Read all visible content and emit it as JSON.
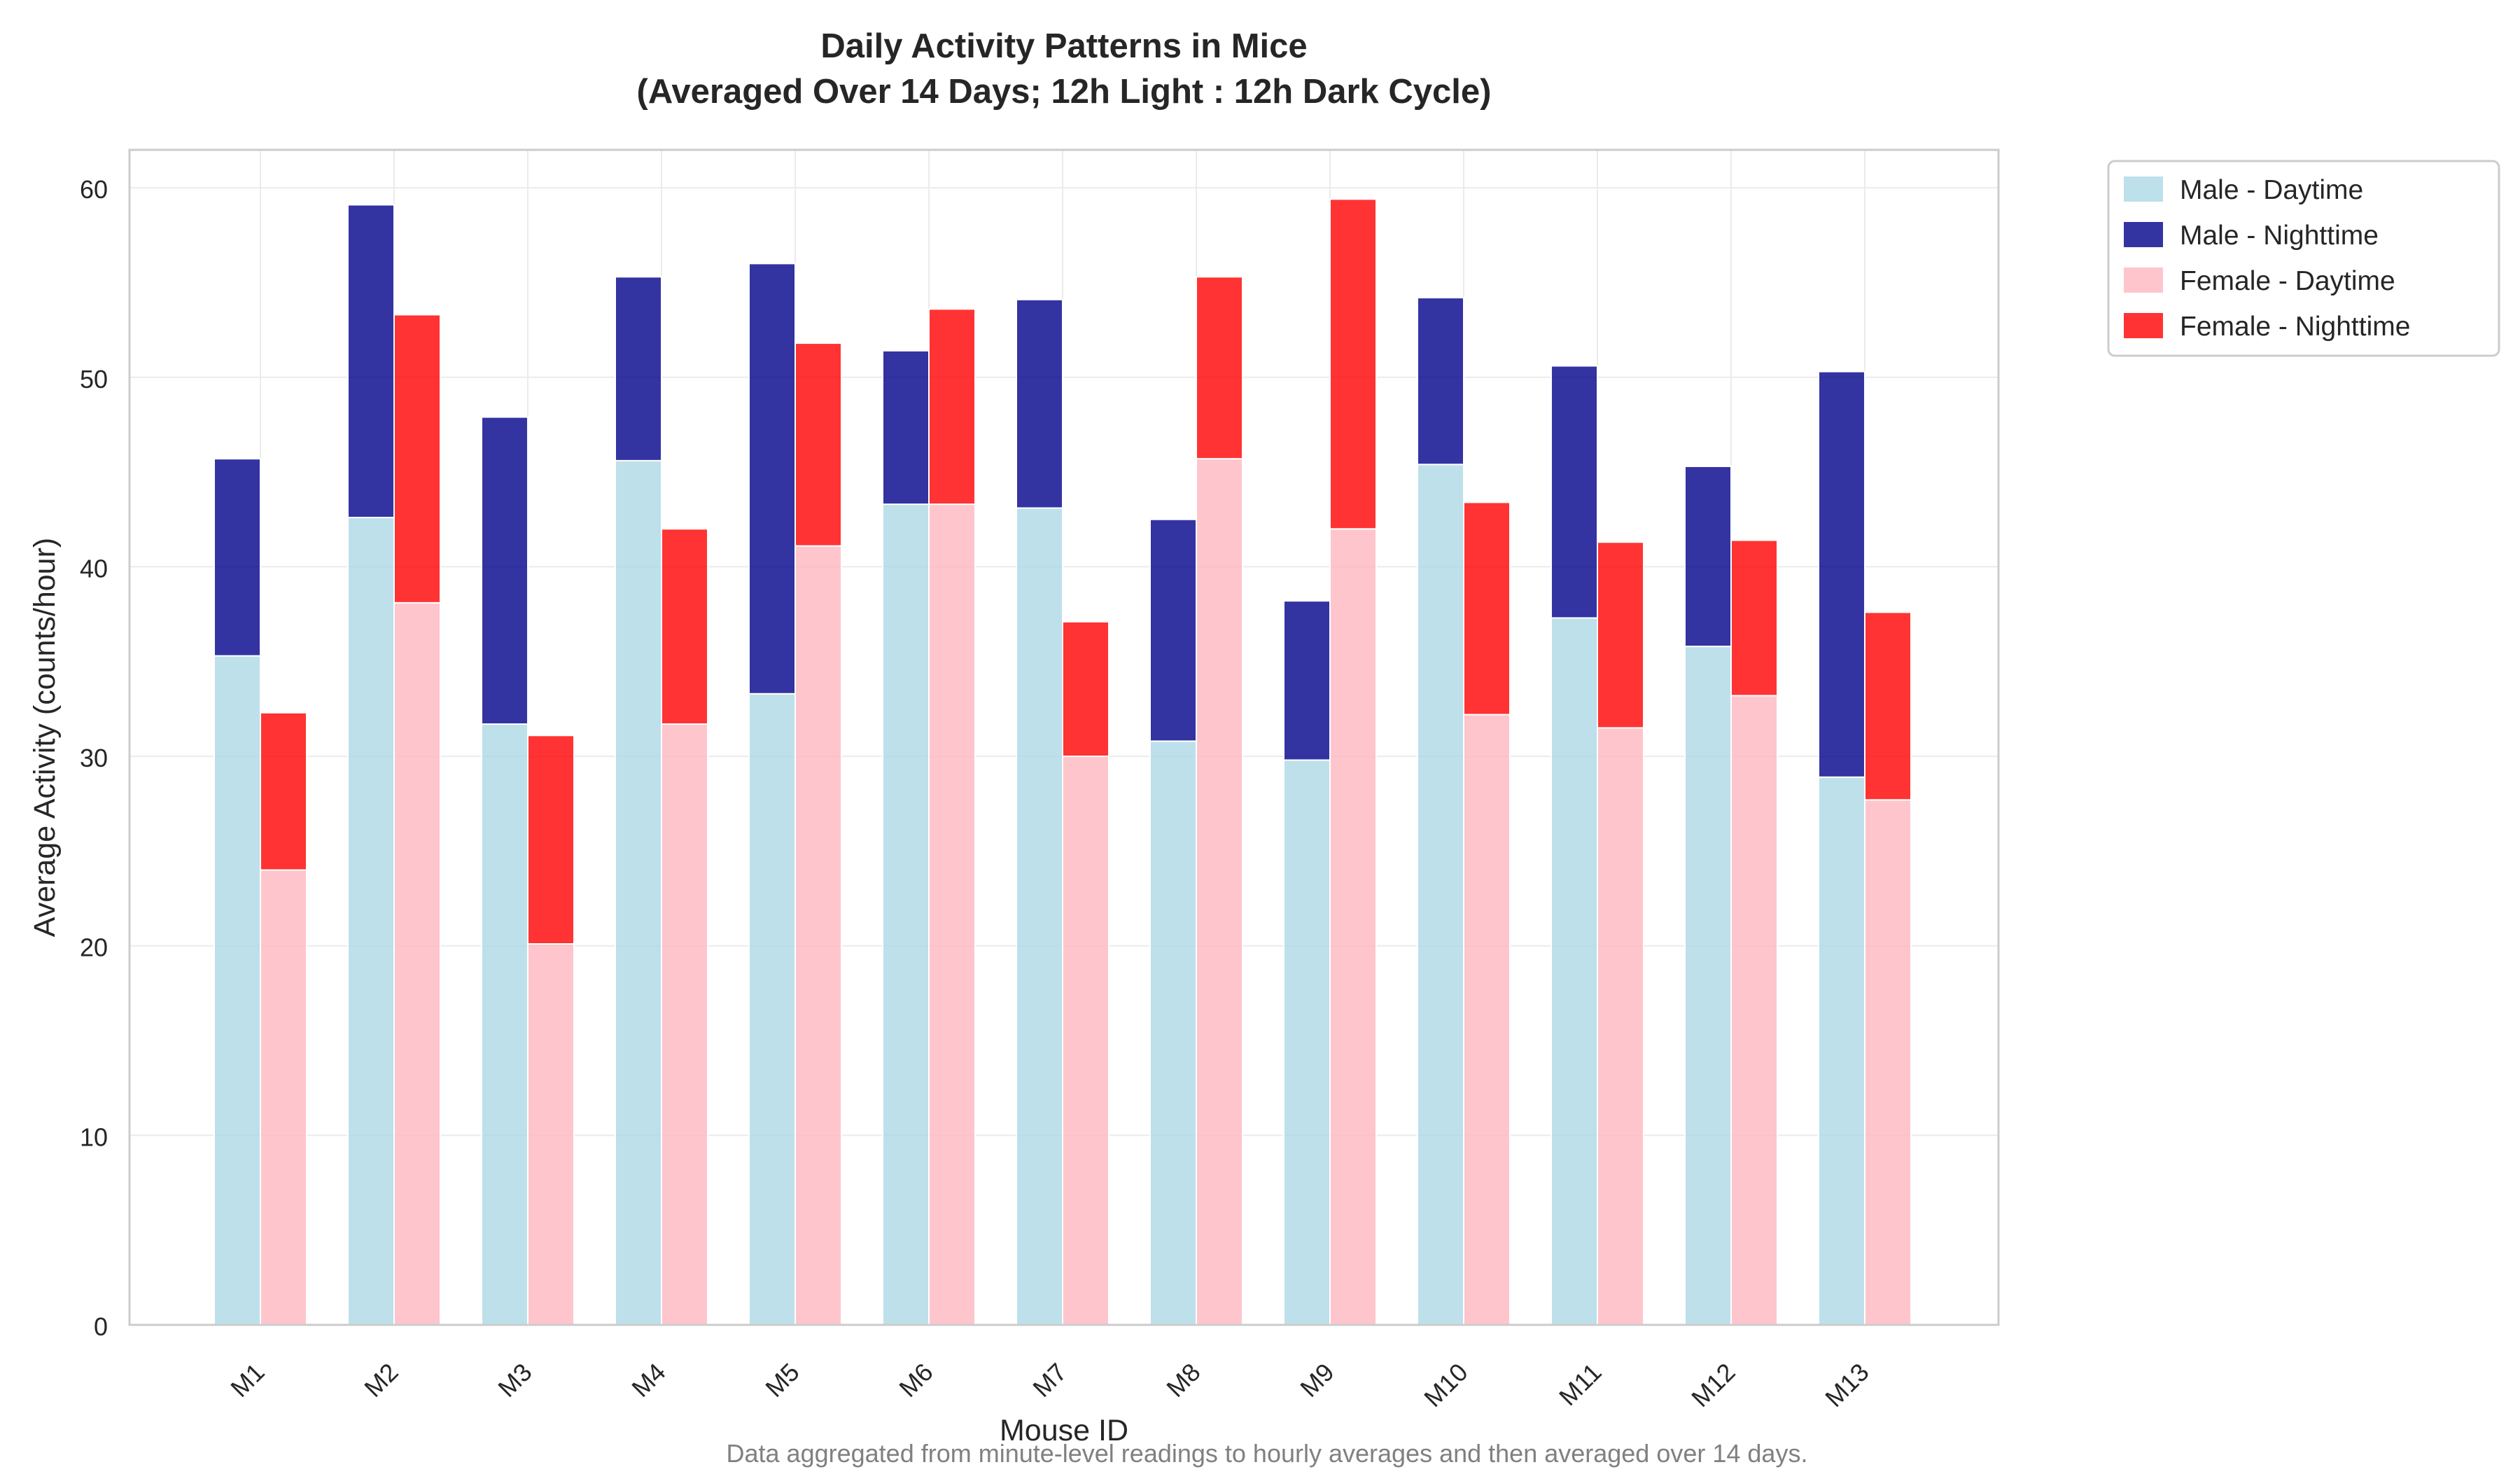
{
  "chart_data": {
    "type": "bar",
    "title_line1": "Daily Activity Patterns in Mice",
    "title_line2": "(Averaged Over 14 Days; 12h Light : 12h Dark Cycle)",
    "xlabel": "Mouse ID",
    "ylabel": "Average Activity (counts/hour)",
    "footnote": "Data aggregated from minute-level readings to hourly averages and then averaged over 14 days.",
    "categories": [
      "M1",
      "M2",
      "M3",
      "M4",
      "M5",
      "M6",
      "M7",
      "M8",
      "M9",
      "M10",
      "M11",
      "M12",
      "M13"
    ],
    "ylim": [
      0,
      62
    ],
    "yticks": [
      0,
      10,
      20,
      30,
      40,
      50,
      60
    ],
    "grid": true,
    "legend_position": "outside-top-right",
    "stacking": "day + night stacked per sex",
    "series": [
      {
        "name": "Male - Daytime",
        "group": "male",
        "color": "#add8e6",
        "values": [
          35.3,
          42.6,
          31.7,
          45.6,
          33.3,
          43.3,
          43.1,
          30.8,
          29.8,
          45.4,
          37.3,
          35.8,
          28.9
        ]
      },
      {
        "name": "Male - Nighttime",
        "group": "male",
        "color": "#00008b",
        "values": [
          10.4,
          16.5,
          16.2,
          9.7,
          22.7,
          8.1,
          11.0,
          11.7,
          8.4,
          8.8,
          13.3,
          9.5,
          21.4
        ]
      },
      {
        "name": "Female - Daytime",
        "group": "female",
        "color": "#ffb6c1",
        "values": [
          24.0,
          38.1,
          20.1,
          31.7,
          41.1,
          43.3,
          30.0,
          45.7,
          42.0,
          32.2,
          31.5,
          33.2,
          27.7
        ]
      },
      {
        "name": "Female - Nighttime",
        "group": "female",
        "color": "#ff0000",
        "values": [
          8.3,
          15.2,
          11.0,
          10.3,
          10.7,
          10.3,
          7.1,
          9.6,
          17.4,
          11.2,
          9.8,
          8.2,
          9.9
        ]
      }
    ]
  }
}
